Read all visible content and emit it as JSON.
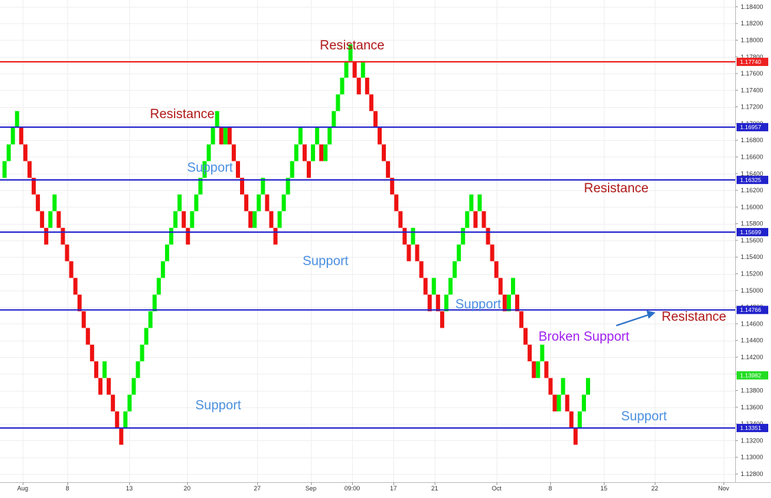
{
  "chart_data": {
    "type": "renko",
    "title": "",
    "xlabel": "",
    "ylabel": "",
    "ylim": [
      1.1275,
      1.1848
    ],
    "grid": true,
    "colors": {
      "up": "#00ee00",
      "down": "#ee1111",
      "support": "#2222cc",
      "resistance": "#ee2222",
      "support_text": "#4a8fe0",
      "resistance_text": "#b01818",
      "broken_text": "#a020f0",
      "arrow": "#2a70c8",
      "current_tag": "#22dd22"
    },
    "y_ticks": [
      "1.12800",
      "1.13000",
      "1.13200",
      "1.13400",
      "1.13600",
      "1.13800",
      "1.14000",
      "1.14200",
      "1.14400",
      "1.14600",
      "1.14800",
      "1.15000",
      "1.15200",
      "1.15400",
      "1.15600",
      "1.15800",
      "1.16000",
      "1.16200",
      "1.16400",
      "1.16600",
      "1.16800",
      "1.17000",
      "1.17200",
      "1.17400",
      "1.17600",
      "1.17800",
      "1.18000",
      "1.18200",
      "1.18400"
    ],
    "x_ticks": [
      "Aug",
      "8",
      "13",
      "20",
      "27",
      "Sep",
      "09:00",
      "17",
      "21",
      "Oct",
      "8",
      "15",
      "22",
      "Nov"
    ],
    "levels": [
      {
        "value": 1.1774,
        "label": "1.17740",
        "kind": "resistance"
      },
      {
        "value": 1.16957,
        "label": "1.16957",
        "kind": "support"
      },
      {
        "value": 1.16325,
        "label": "1.16325",
        "kind": "support"
      },
      {
        "value": 1.15699,
        "label": "1.15699",
        "kind": "support"
      },
      {
        "value": 1.14766,
        "label": "1.14766",
        "kind": "support"
      },
      {
        "value": 1.13351,
        "label": "1.13351",
        "kind": "support"
      }
    ],
    "current_price": {
      "value": 1.13982,
      "label": "1.13982"
    },
    "bricks": [
      [
        1.1635,
        1.1655
      ],
      [
        1.1655,
        1.1675
      ],
      [
        1.1675,
        1.1695
      ],
      [
        1.1695,
        1.1715
      ],
      [
        1.1695,
        1.1675
      ],
      [
        1.1675,
        1.1655
      ],
      [
        1.1655,
        1.1635
      ],
      [
        1.1635,
        1.1615
      ],
      [
        1.1615,
        1.1595
      ],
      [
        1.1595,
        1.1575
      ],
      [
        1.1575,
        1.1555
      ],
      [
        1.1575,
        1.1595
      ],
      [
        1.1595,
        1.1615
      ],
      [
        1.1595,
        1.1575
      ],
      [
        1.1575,
        1.1555
      ],
      [
        1.1555,
        1.1535
      ],
      [
        1.1535,
        1.1515
      ],
      [
        1.1515,
        1.1495
      ],
      [
        1.1495,
        1.1475
      ],
      [
        1.1475,
        1.1455
      ],
      [
        1.1455,
        1.1435
      ],
      [
        1.1435,
        1.1415
      ],
      [
        1.1415,
        1.1395
      ],
      [
        1.1395,
        1.1375
      ],
      [
        1.1395,
        1.1415
      ],
      [
        1.1395,
        1.1375
      ],
      [
        1.1375,
        1.1355
      ],
      [
        1.1355,
        1.1335
      ],
      [
        1.1335,
        1.1315
      ],
      [
        1.1335,
        1.1355
      ],
      [
        1.1355,
        1.1375
      ],
      [
        1.1375,
        1.1395
      ],
      [
        1.1395,
        1.1415
      ],
      [
        1.1415,
        1.1435
      ],
      [
        1.1435,
        1.1455
      ],
      [
        1.1455,
        1.1475
      ],
      [
        1.1475,
        1.1495
      ],
      [
        1.1495,
        1.1515
      ],
      [
        1.1515,
        1.1535
      ],
      [
        1.1535,
        1.1555
      ],
      [
        1.1555,
        1.1575
      ],
      [
        1.1575,
        1.1595
      ],
      [
        1.1595,
        1.1615
      ],
      [
        1.1595,
        1.1575
      ],
      [
        1.1575,
        1.1555
      ],
      [
        1.1575,
        1.1595
      ],
      [
        1.1595,
        1.1615
      ],
      [
        1.1615,
        1.1635
      ],
      [
        1.1635,
        1.1655
      ],
      [
        1.1655,
        1.1675
      ],
      [
        1.1675,
        1.1695
      ],
      [
        1.1695,
        1.1715
      ],
      [
        1.1695,
        1.1675
      ],
      [
        1.1675,
        1.1695
      ],
      [
        1.1695,
        1.1675
      ],
      [
        1.1675,
        1.1655
      ],
      [
        1.1655,
        1.1635
      ],
      [
        1.1635,
        1.1615
      ],
      [
        1.1615,
        1.1595
      ],
      [
        1.1595,
        1.1575
      ],
      [
        1.1575,
        1.1595
      ],
      [
        1.1595,
        1.1615
      ],
      [
        1.1615,
        1.1635
      ],
      [
        1.1615,
        1.1595
      ],
      [
        1.1595,
        1.1575
      ],
      [
        1.1575,
        1.1555
      ],
      [
        1.1575,
        1.1595
      ],
      [
        1.1595,
        1.1615
      ],
      [
        1.1615,
        1.1635
      ],
      [
        1.1635,
        1.1655
      ],
      [
        1.1655,
        1.1675
      ],
      [
        1.1675,
        1.1695
      ],
      [
        1.1675,
        1.1655
      ],
      [
        1.1655,
        1.1635
      ],
      [
        1.1655,
        1.1675
      ],
      [
        1.1675,
        1.1695
      ],
      [
        1.1675,
        1.1655
      ],
      [
        1.1655,
        1.1675
      ],
      [
        1.1675,
        1.1695
      ],
      [
        1.1695,
        1.1715
      ],
      [
        1.1715,
        1.1735
      ],
      [
        1.1735,
        1.1755
      ],
      [
        1.1755,
        1.1775
      ],
      [
        1.1775,
        1.1795
      ],
      [
        1.1775,
        1.1755
      ],
      [
        1.1755,
        1.1735
      ],
      [
        1.1755,
        1.1775
      ],
      [
        1.1755,
        1.1735
      ],
      [
        1.1735,
        1.1715
      ],
      [
        1.1715,
        1.1695
      ],
      [
        1.1695,
        1.1675
      ],
      [
        1.1675,
        1.1655
      ],
      [
        1.1655,
        1.1635
      ],
      [
        1.1635,
        1.1615
      ],
      [
        1.1615,
        1.1595
      ],
      [
        1.1595,
        1.1575
      ],
      [
        1.1575,
        1.1555
      ],
      [
        1.1555,
        1.1535
      ],
      [
        1.1555,
        1.1575
      ],
      [
        1.1555,
        1.1535
      ],
      [
        1.1535,
        1.1515
      ],
      [
        1.1515,
        1.1495
      ],
      [
        1.1495,
        1.1475
      ],
      [
        1.1495,
        1.1515
      ],
      [
        1.1495,
        1.1475
      ],
      [
        1.1475,
        1.1455
      ],
      [
        1.1475,
        1.1495
      ],
      [
        1.1495,
        1.1515
      ],
      [
        1.1515,
        1.1535
      ],
      [
        1.1535,
        1.1555
      ],
      [
        1.1555,
        1.1575
      ],
      [
        1.1575,
        1.1595
      ],
      [
        1.1595,
        1.1615
      ],
      [
        1.1595,
        1.1575
      ],
      [
        1.1595,
        1.1615
      ],
      [
        1.1595,
        1.1575
      ],
      [
        1.1575,
        1.1555
      ],
      [
        1.1555,
        1.1535
      ],
      [
        1.1535,
        1.1515
      ],
      [
        1.1515,
        1.1495
      ],
      [
        1.1495,
        1.1475
      ],
      [
        1.1475,
        1.1495
      ],
      [
        1.1495,
        1.1515
      ],
      [
        1.1495,
        1.1475
      ],
      [
        1.1475,
        1.1455
      ],
      [
        1.1455,
        1.1435
      ],
      [
        1.1435,
        1.1415
      ],
      [
        1.1415,
        1.1395
      ],
      [
        1.1395,
        1.1415
      ],
      [
        1.1415,
        1.1435
      ],
      [
        1.1415,
        1.1395
      ],
      [
        1.1395,
        1.1375
      ],
      [
        1.1375,
        1.1355
      ],
      [
        1.1355,
        1.1375
      ],
      [
        1.1375,
        1.1395
      ],
      [
        1.1375,
        1.1355
      ],
      [
        1.1355,
        1.1335
      ],
      [
        1.1335,
        1.1315
      ],
      [
        1.1335,
        1.1355
      ],
      [
        1.1355,
        1.1375
      ],
      [
        1.1375,
        1.1395
      ]
    ]
  },
  "annotations": {
    "resistance_top": "Resistance",
    "resistance_upper": "Resistance",
    "support_upper": "Support",
    "support_mid": "Support",
    "resistance_right": "Resistance",
    "support_right": "Support",
    "broken_support": "Broken Support",
    "resistance_low": "Resistance",
    "support_low_left": "Support",
    "support_low_right": "Support"
  }
}
